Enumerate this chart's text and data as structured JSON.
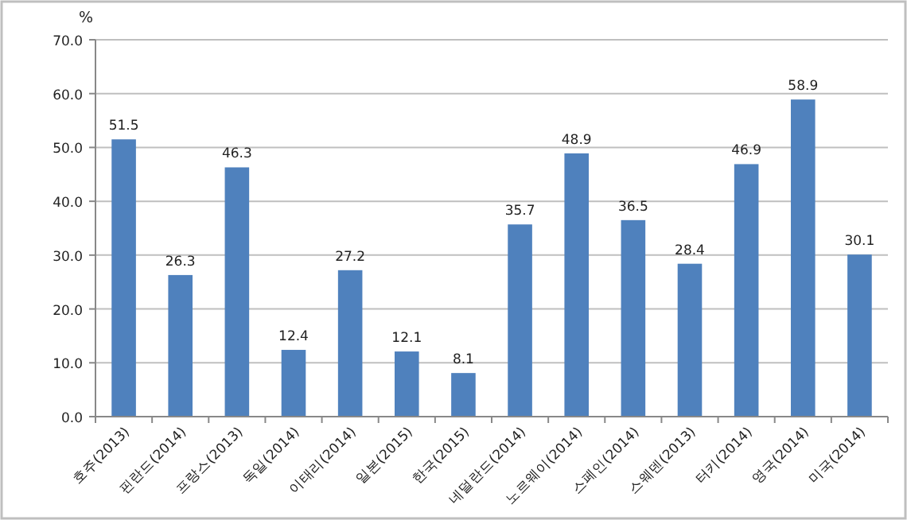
{
  "chart_data": {
    "type": "bar",
    "ylabel": "%",
    "categories": [
      "호주(2013)",
      "핀란드(2014)",
      "프랑스(2013)",
      "독일(2014)",
      "이태리(2014)",
      "일본(2015)",
      "한국(2015)",
      "네덜란드(2014)",
      "노르웨이(2014)",
      "스페인(2014)",
      "스웨덴(2013)",
      "터키(2014)",
      "영국(2014)",
      "미국(2014)"
    ],
    "values": [
      51.5,
      26.3,
      46.3,
      12.4,
      27.2,
      12.1,
      8.1,
      35.7,
      48.9,
      36.5,
      28.4,
      46.9,
      58.9,
      30.1
    ],
    "color": "#4f81bd",
    "data_labels": true,
    "grid": "y",
    "ylim": [
      0,
      70
    ],
    "yticks": [
      {
        "value": 0,
        "label": "0.0"
      },
      {
        "value": 10,
        "label": "10.0"
      },
      {
        "value": 20,
        "label": "20.0"
      },
      {
        "value": 30,
        "label": "30.0"
      },
      {
        "value": 40,
        "label": "40.0"
      },
      {
        "value": 50,
        "label": "50.0"
      },
      {
        "value": 60,
        "label": "60.0"
      },
      {
        "value": 70,
        "label": "70.0"
      }
    ]
  }
}
